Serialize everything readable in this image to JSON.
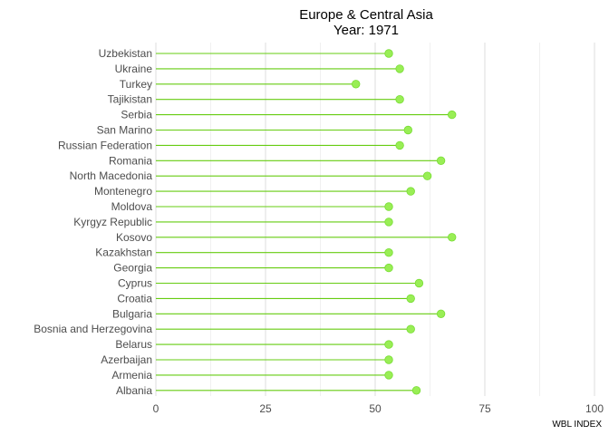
{
  "chart_data": {
    "type": "lollipop",
    "title": "Europe & Central Asia",
    "subtitle": "Year: 1971",
    "xlabel": "WBL INDEX",
    "ylabel": "",
    "xlim": [
      0,
      100
    ],
    "x_ticks": [
      0,
      25,
      50,
      75,
      100
    ],
    "grid": "vertical",
    "color": "#99ee55",
    "stem_color": "#66cc11",
    "categories": [
      "Uzbekistan",
      "Ukraine",
      "Turkey",
      "Tajikistan",
      "Serbia",
      "San Marino",
      "Russian Federation",
      "Romania",
      "North Macedonia",
      "Montenegro",
      "Moldova",
      "Kyrgyz Republic",
      "Kosovo",
      "Kazakhstan",
      "Georgia",
      "Cyprus",
      "Croatia",
      "Bulgaria",
      "Bosnia and Herzegovina",
      "Belarus",
      "Azerbaijan",
      "Armenia",
      "Albania"
    ],
    "values": [
      53.1,
      55.6,
      45.6,
      55.6,
      67.5,
      57.5,
      55.6,
      65.0,
      61.9,
      58.1,
      53.1,
      53.1,
      67.5,
      53.1,
      53.1,
      60.0,
      58.1,
      65.0,
      58.1,
      53.1,
      53.1,
      53.1,
      59.4
    ]
  }
}
